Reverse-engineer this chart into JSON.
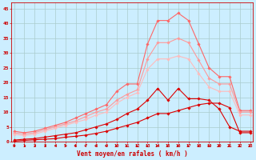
{
  "xlabel": "Vent moyen/en rafales ( km/h )",
  "background_color": "#cceeff",
  "grid_color": "#aacccc",
  "x": [
    0,
    1,
    2,
    3,
    4,
    5,
    6,
    7,
    8,
    9,
    10,
    11,
    12,
    13,
    14,
    15,
    16,
    17,
    18,
    19,
    20,
    21,
    22,
    23
  ],
  "series": [
    {
      "color": "#dd0000",
      "lw": 0.8,
      "marker": "D",
      "markersize": 1.8,
      "values": [
        0.5,
        0.8,
        1.0,
        1.5,
        2.0,
        2.5,
        3.0,
        4.0,
        5.0,
        6.0,
        7.5,
        9.5,
        11.0,
        14.0,
        18.0,
        14.0,
        18.0,
        14.5,
        14.5,
        14.0,
        11.0,
        5.0,
        3.5,
        3.5
      ]
    },
    {
      "color": "#dd0000",
      "lw": 0.8,
      "marker": "D",
      "markersize": 1.8,
      "values": [
        0.2,
        0.4,
        0.6,
        0.8,
        1.0,
        1.5,
        1.8,
        2.2,
        2.8,
        3.5,
        4.5,
        5.5,
        6.5,
        8.0,
        9.5,
        9.5,
        10.5,
        11.5,
        12.5,
        13.0,
        13.0,
        11.5,
        3.0,
        3.0
      ]
    },
    {
      "color": "#ff6666",
      "lw": 0.8,
      "marker": "D",
      "markersize": 1.8,
      "values": [
        3.5,
        3.0,
        3.5,
        4.5,
        5.5,
        6.5,
        8.0,
        9.5,
        11.0,
        12.5,
        17.0,
        19.5,
        19.5,
        33.0,
        41.0,
        41.0,
        43.5,
        41.0,
        33.0,
        25.0,
        22.0,
        22.0,
        10.5,
        10.5
      ]
    },
    {
      "color": "#ff9999",
      "lw": 0.8,
      "marker": "D",
      "markersize": 1.8,
      "values": [
        3.0,
        2.5,
        3.0,
        4.0,
        5.0,
        6.0,
        7.0,
        8.5,
        10.0,
        11.0,
        14.0,
        16.0,
        17.5,
        28.0,
        33.5,
        33.5,
        35.0,
        33.5,
        27.5,
        21.5,
        19.5,
        19.5,
        10.0,
        10.0
      ]
    },
    {
      "color": "#ffbbbb",
      "lw": 0.8,
      "marker": "D",
      "markersize": 1.8,
      "values": [
        2.5,
        2.0,
        2.5,
        3.5,
        4.5,
        5.5,
        6.5,
        7.5,
        9.0,
        10.0,
        13.0,
        15.0,
        16.5,
        24.5,
        28.0,
        28.0,
        29.0,
        28.0,
        23.0,
        18.5,
        17.0,
        17.0,
        9.0,
        9.0
      ]
    }
  ],
  "yticks": [
    0,
    5,
    10,
    15,
    20,
    25,
    30,
    35,
    40,
    45
  ],
  "xticks": [
    0,
    1,
    2,
    3,
    4,
    5,
    6,
    7,
    8,
    9,
    10,
    11,
    12,
    13,
    14,
    15,
    16,
    17,
    18,
    19,
    20,
    21,
    22,
    23
  ],
  "ylim": [
    0,
    47
  ],
  "xlim": [
    -0.3,
    23.3
  ]
}
